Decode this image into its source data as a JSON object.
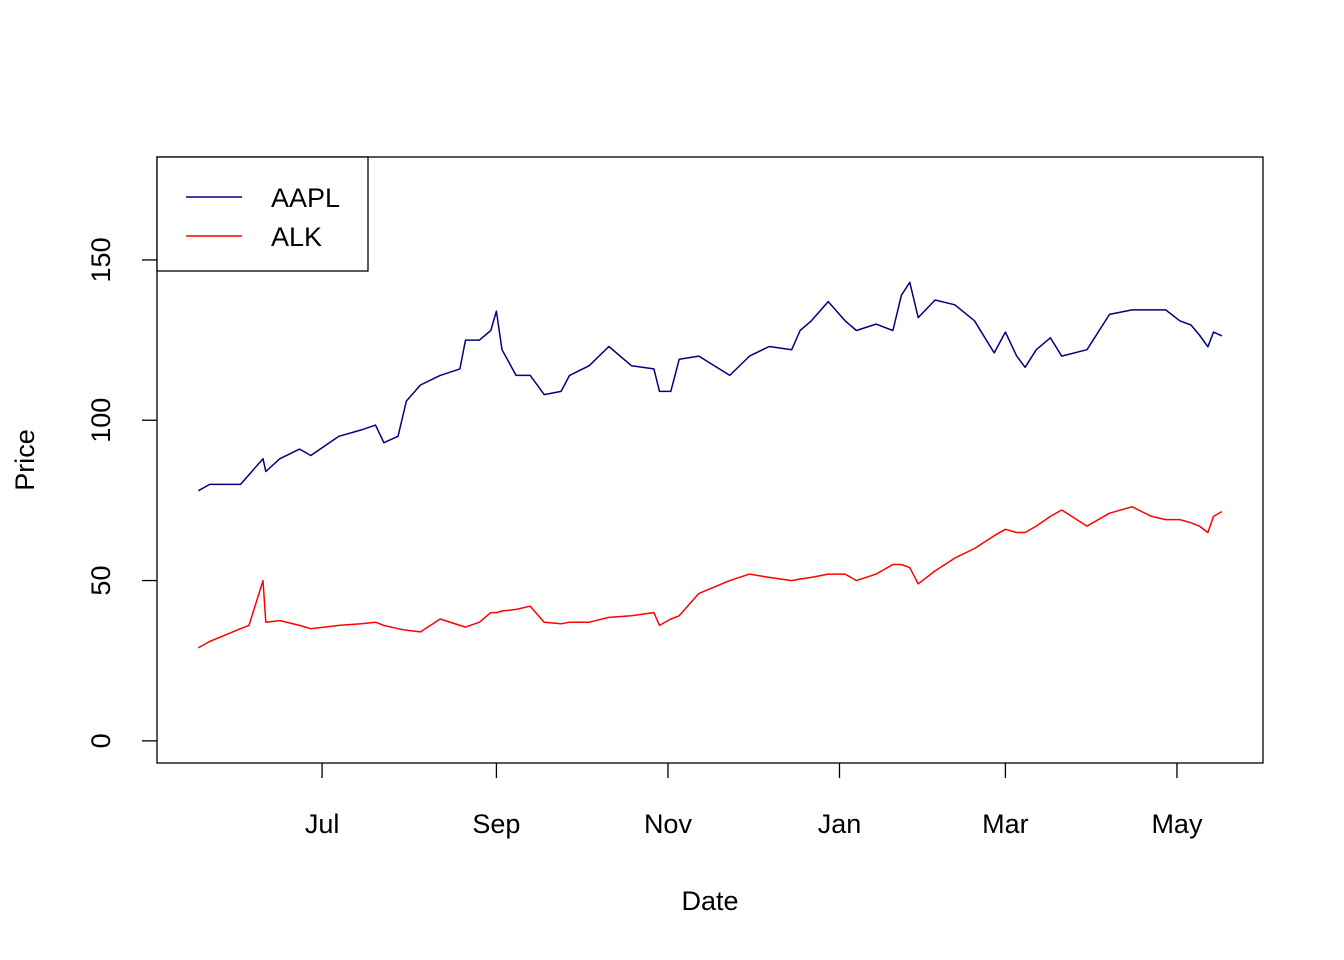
{
  "chart_data": {
    "type": "line",
    "xlabel": "Date",
    "ylabel": "Price",
    "x": [
      -44,
      -40,
      -29,
      -26,
      -21,
      -20,
      -15,
      -8,
      -4,
      6,
      14,
      19,
      22,
      27,
      30,
      35,
      42,
      49,
      51,
      56,
      60,
      62,
      64,
      69,
      74,
      79,
      85,
      88,
      95,
      102,
      110,
      118,
      120,
      124,
      127,
      134,
      145,
      152,
      159,
      167,
      170,
      174,
      180,
      186,
      190,
      197,
      203,
      206,
      209,
      212,
      218,
      225,
      232,
      239,
      243,
      247,
      250,
      254,
      259,
      263,
      272,
      280,
      288,
      295,
      300,
      305,
      309,
      312,
      315,
      317,
      320
    ],
    "series": [
      {
        "name": "AAPL",
        "color": "#000080",
        "values": [
          78,
          80,
          80,
          83,
          88,
          84,
          88,
          91,
          89,
          95,
          97,
          98.5,
          93,
          95,
          106,
          111,
          114,
          116,
          125,
          125,
          128,
          134,
          122,
          114,
          114,
          108,
          109,
          114,
          117,
          123,
          117,
          116,
          109,
          109,
          119,
          120,
          114,
          120,
          123,
          122,
          128,
          131,
          137,
          131,
          128,
          130,
          128,
          139,
          143,
          132,
          137.5,
          136,
          131,
          121,
          127.5,
          120,
          116.5,
          122,
          125.7,
          120,
          122,
          133,
          134.4,
          134.4,
          134.4,
          131,
          129.7,
          126.6,
          122.9,
          127.5,
          126.3
        ]
      },
      {
        "name": "ALK",
        "color": "#ff0000",
        "values": [
          29,
          31,
          35,
          36,
          50,
          37,
          37.5,
          36,
          35,
          36,
          36.5,
          37,
          36,
          35,
          34.5,
          34,
          38,
          36,
          35.5,
          37,
          40,
          40,
          40.5,
          41,
          42,
          37,
          36.5,
          37,
          37,
          38.5,
          39,
          40,
          36,
          38,
          39,
          46,
          50,
          52,
          51,
          50,
          50.5,
          51,
          52,
          52,
          50,
          52,
          55,
          55,
          54,
          49,
          53,
          57,
          60,
          64,
          66,
          65,
          65,
          67,
          70,
          72,
          67,
          71,
          73,
          70,
          69,
          69,
          68,
          67,
          65,
          70,
          71.5
        ]
      }
    ],
    "xlim": [
      -58.7,
      334.6
    ],
    "xticks": [
      {
        "value": 0,
        "label": "Jul"
      },
      {
        "value": 62,
        "label": "Sep"
      },
      {
        "value": 123,
        "label": "Nov"
      },
      {
        "value": 184,
        "label": "Jan"
      },
      {
        "value": 243,
        "label": "Mar"
      },
      {
        "value": 304,
        "label": "May"
      }
    ],
    "ylim": [
      -6.9,
      182.1
    ],
    "yticks": [
      0,
      50,
      100,
      150
    ],
    "legend": "topleft",
    "grid": false
  }
}
